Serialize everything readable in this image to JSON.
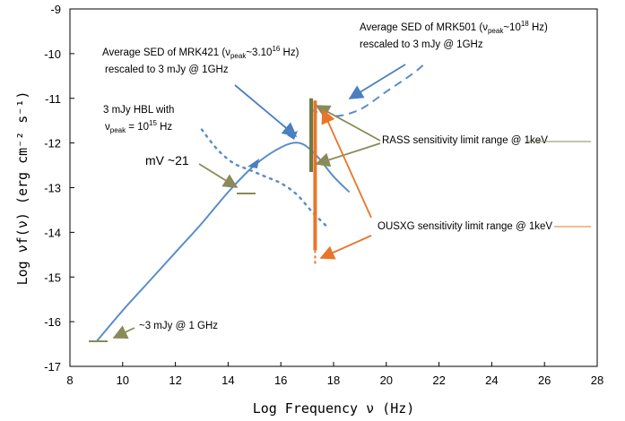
{
  "chart_data": {
    "type": "line",
    "xlabel": "Log Frequency ν (Hz)",
    "ylabel": "Log νf(ν) (erg cm⁻² s⁻¹)",
    "xlim": [
      8,
      28
    ],
    "ylim": [
      -17,
      -9
    ],
    "xticks": [
      "8",
      "10",
      "12",
      "14",
      "16",
      "18",
      "20",
      "22",
      "24",
      "26",
      "28"
    ],
    "yticks": [
      "-9",
      "-10",
      "-11",
      "-12",
      "-13",
      "-14",
      "-15",
      "-16",
      "-17"
    ],
    "grid": false,
    "series": [
      {
        "label": "Average SED of MRK421",
        "style": "solid",
        "color": "#5b8ec6",
        "x": [
          9.0,
          10.0,
          11.0,
          12.0,
          13.0,
          14.0,
          15.0,
          16.0,
          16.7,
          17.3,
          18.0,
          18.6
        ],
        "y": [
          -16.45,
          -15.75,
          -15.1,
          -14.45,
          -13.8,
          -13.1,
          -12.5,
          -12.1,
          -12.0,
          -12.25,
          -12.75,
          -13.1
        ]
      },
      {
        "label": "3 mJy HBL with ν_peak = 10^15 Hz",
        "style": "dotted",
        "color": "#5b8ec6",
        "x": [
          13.0,
          13.6,
          14.2,
          14.8,
          15.4,
          16.0,
          16.6,
          17.2,
          17.8
        ],
        "y": [
          -11.7,
          -12.15,
          -12.45,
          -12.6,
          -12.75,
          -12.9,
          -13.15,
          -13.55,
          -13.9
        ]
      },
      {
        "label": "Average SED of MRK501",
        "style": "dashed",
        "color": "#5b8ec6",
        "x": [
          17.1,
          18.0,
          19.0,
          20.0,
          21.0,
          21.5
        ],
        "y": [
          -11.25,
          -11.4,
          -11.25,
          -10.85,
          -10.45,
          -10.2
        ]
      }
    ],
    "markers": [
      {
        "label": "RASS sensitivity limit range",
        "x": 17.15,
        "y_top": -11.0,
        "y_bottom": -12.65,
        "color": "#6e7a42"
      },
      {
        "label": "OUSXG sensitivity limit range",
        "x": 17.3,
        "y_top": -11.05,
        "y_bottom": -14.4,
        "y_dashed_to": -14.75,
        "color": "#e8752a"
      }
    ],
    "annotations": {
      "mrk421_line1": "Average SED of MRK421 (ν",
      "mrk421_sub": "peak",
      "mrk421_tail": "~3.10",
      "mrk421_sup": "16",
      "mrk421_unit": " Hz)",
      "mrk421_line2": "rescaled to 3 mJy @ 1GHz",
      "mrk501_line1": "Average SED of MRK501 (ν",
      "mrk501_sub": "peak",
      "mrk501_tail": "~10",
      "mrk501_sup": "18",
      "mrk501_unit": " Hz)",
      "mrk501_line2": "rescaled to 3 mJy @ 1GHz",
      "hbl_line1": "3 mJy  HBL with",
      "hbl_nu": "ν",
      "hbl_sub": "peak",
      "hbl_tail": " = 10",
      "hbl_sup": "15",
      "hbl_unit": " Hz",
      "mv": "mV ~21",
      "rass": "RASS sensitivity limit range @ 1keV",
      "ousxg": "OUSXG sensitivity limit range @ 1keV",
      "radio": "~3 mJy @ 1 GHz"
    }
  }
}
